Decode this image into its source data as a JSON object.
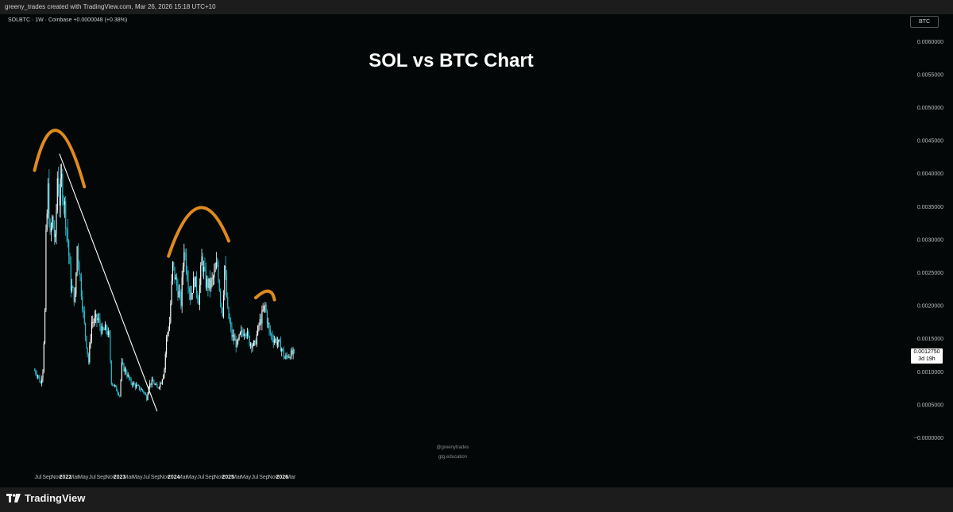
{
  "header": {
    "caption": "greeny_trades created with TradingView.com, Mar 26, 2026 15:18 UTC+10"
  },
  "symbol_info": "SOLBTC · 1W · Coinbase  +0.0000048 (+0.38%)",
  "currency_badge": "BTC",
  "footer": {
    "brand": "TradingView"
  },
  "watermark": {
    "line1": "@greenytrades",
    "line2": "gtg.education"
  },
  "last_price": {
    "price": "0.0012750",
    "countdown": "3d 19h"
  },
  "colors": {
    "up": "#ffffff",
    "down": "#26c6da",
    "annotation": "#e08a1e",
    "trendline": "#ffffff",
    "background": "#040707"
  },
  "chart_data": {
    "type": "candlestick",
    "title": "SOL vs BTC Chart",
    "timeframe": "1W",
    "exchange": "Coinbase",
    "y_axis": {
      "ylim": [
        -5e-05,
        0.00065
      ],
      "ticks": [
        "0.0060000",
        "0.0055000",
        "0.0050000",
        "0.0045000",
        "0.0040000",
        "0.0035000",
        "0.0030000",
        "0.0025000",
        "0.0020000",
        "0.0015000",
        "0.0010000",
        "0.0005000",
        "−0.0000000"
      ],
      "tick_values": [
        0.006,
        0.0055,
        0.005,
        0.0045,
        0.004,
        0.0035,
        0.003,
        0.0025,
        0.002,
        0.0015,
        0.001,
        0.0005,
        0
      ]
    },
    "x_axis": {
      "ticks": [
        "Jul",
        "Sep",
        "Nov",
        "2022",
        "Mar",
        "May",
        "Jul",
        "Sep",
        "Nov",
        "2023",
        "Mar",
        "May",
        "Jul",
        "Sep",
        "Nov",
        "2024",
        "Mar",
        "May",
        "Jul",
        "Sep",
        "Nov",
        "2025",
        "Mar",
        "May",
        "Jul",
        "Sep",
        "Nov",
        "2026",
        "Mar"
      ],
      "tick_dates": [
        "2021-07-01",
        "2021-09-01",
        "2021-11-01",
        "2022-01-01",
        "2022-03-01",
        "2022-05-01",
        "2022-07-01",
        "2022-09-01",
        "2022-11-01",
        "2023-01-01",
        "2023-03-01",
        "2023-05-01",
        "2023-07-01",
        "2023-09-01",
        "2023-11-01",
        "2024-01-01",
        "2024-03-01",
        "2024-05-01",
        "2024-07-01",
        "2024-09-01",
        "2024-11-01",
        "2025-01-01",
        "2025-03-01",
        "2025-05-01",
        "2025-07-01",
        "2025-09-01",
        "2025-11-01",
        "2026-01-01",
        "2026-03-01"
      ],
      "bold": [
        "2022",
        "2023",
        "2024",
        "2025",
        "2026"
      ]
    },
    "price_path": [
      [
        "2021-06-07",
        0.00102
      ],
      [
        "2021-06-28",
        0.00095
      ],
      [
        "2021-07-19",
        0.00082
      ],
      [
        "2021-08-02",
        0.00105
      ],
      [
        "2021-08-16",
        0.0019
      ],
      [
        "2021-08-23",
        0.003
      ],
      [
        "2021-09-06",
        0.00375
      ],
      [
        "2021-09-20",
        0.003
      ],
      [
        "2021-10-04",
        0.0033
      ],
      [
        "2021-10-25",
        0.00295
      ],
      [
        "2021-11-08",
        0.00395
      ],
      [
        "2021-11-22",
        0.0036
      ],
      [
        "2021-12-06",
        0.0039
      ],
      [
        "2021-12-27",
        0.0035
      ],
      [
        "2022-01-17",
        0.003
      ],
      [
        "2022-02-07",
        0.0023
      ],
      [
        "2022-03-07",
        0.0021
      ],
      [
        "2022-03-21",
        0.0029
      ],
      [
        "2022-04-11",
        0.0024
      ],
      [
        "2022-05-09",
        0.0017
      ],
      [
        "2022-06-06",
        0.00115
      ],
      [
        "2022-06-27",
        0.00175
      ],
      [
        "2022-08-08",
        0.0018
      ],
      [
        "2022-09-05",
        0.0016
      ],
      [
        "2022-10-03",
        0.00165
      ],
      [
        "2022-10-24",
        0.0015
      ],
      [
        "2022-11-07",
        0.00085
      ],
      [
        "2022-12-05",
        0.00075
      ],
      [
        "2023-01-02",
        0.00065
      ],
      [
        "2023-01-16",
        0.0011
      ],
      [
        "2023-02-13",
        0.001
      ],
      [
        "2023-03-13",
        0.00085
      ],
      [
        "2023-04-10",
        0.0008
      ],
      [
        "2023-05-15",
        0.00075
      ],
      [
        "2023-06-12",
        0.0007
      ],
      [
        "2023-07-03",
        0.0006
      ],
      [
        "2023-07-17",
        0.0008
      ],
      [
        "2023-08-14",
        0.00085
      ],
      [
        "2023-09-11",
        0.00075
      ],
      [
        "2023-10-09",
        0.00085
      ],
      [
        "2023-10-30",
        0.00105
      ],
      [
        "2023-11-13",
        0.0015
      ],
      [
        "2023-12-04",
        0.00175
      ],
      [
        "2023-12-25",
        0.0026
      ],
      [
        "2024-01-22",
        0.0023
      ],
      [
        "2024-02-19",
        0.00205
      ],
      [
        "2024-03-11",
        0.0029
      ],
      [
        "2024-04-01",
        0.0025
      ],
      [
        "2024-04-22",
        0.00215
      ],
      [
        "2024-05-20",
        0.0024
      ],
      [
        "2024-06-17",
        0.0021
      ],
      [
        "2024-07-08",
        0.0027
      ],
      [
        "2024-08-05",
        0.00235
      ],
      [
        "2024-09-02",
        0.0023
      ],
      [
        "2024-09-30",
        0.00245
      ],
      [
        "2024-10-21",
        0.00265
      ],
      [
        "2024-11-11",
        0.0021
      ],
      [
        "2024-11-25",
        0.0019
      ],
      [
        "2024-12-09",
        0.0026
      ],
      [
        "2024-12-30",
        0.0019
      ],
      [
        "2025-01-27",
        0.00155
      ],
      [
        "2025-03-03",
        0.0014
      ],
      [
        "2025-03-24",
        0.00155
      ],
      [
        "2025-04-28",
        0.00165
      ],
      [
        "2025-05-26",
        0.00145
      ],
      [
        "2025-06-30",
        0.0014
      ],
      [
        "2025-07-28",
        0.0017
      ],
      [
        "2025-08-18",
        0.00185
      ],
      [
        "2025-09-08",
        0.002
      ],
      [
        "2025-10-06",
        0.0016
      ],
      [
        "2025-11-03",
        0.0015
      ],
      [
        "2025-12-01",
        0.00145
      ],
      [
        "2025-12-29",
        0.00135
      ],
      [
        "2026-01-19",
        0.0012
      ],
      [
        "2026-02-09",
        0.00125
      ],
      [
        "2026-03-23",
        0.001275
      ]
    ],
    "trendline": {
      "start": [
        "2021-11-22",
        0.0043
      ],
      "end": [
        "2023-09-11",
        0.0004
      ]
    },
    "arcs": [
      {
        "from": [
          "2021-06-07",
          0.00405
        ],
        "peak": [
          "2021-11-08",
          0.00465
        ],
        "to": [
          "2022-05-09",
          0.0038
        ]
      },
      {
        "from": [
          "2023-11-27",
          0.00275
        ],
        "peak": [
          "2024-06-17",
          0.00348
        ],
        "to": [
          "2025-01-06",
          0.00298
        ]
      },
      {
        "from": [
          "2025-07-07",
          0.00212
        ],
        "peak": [
          "2025-09-29",
          0.00222
        ],
        "to": [
          "2025-11-10",
          0.00209
        ]
      }
    ]
  }
}
